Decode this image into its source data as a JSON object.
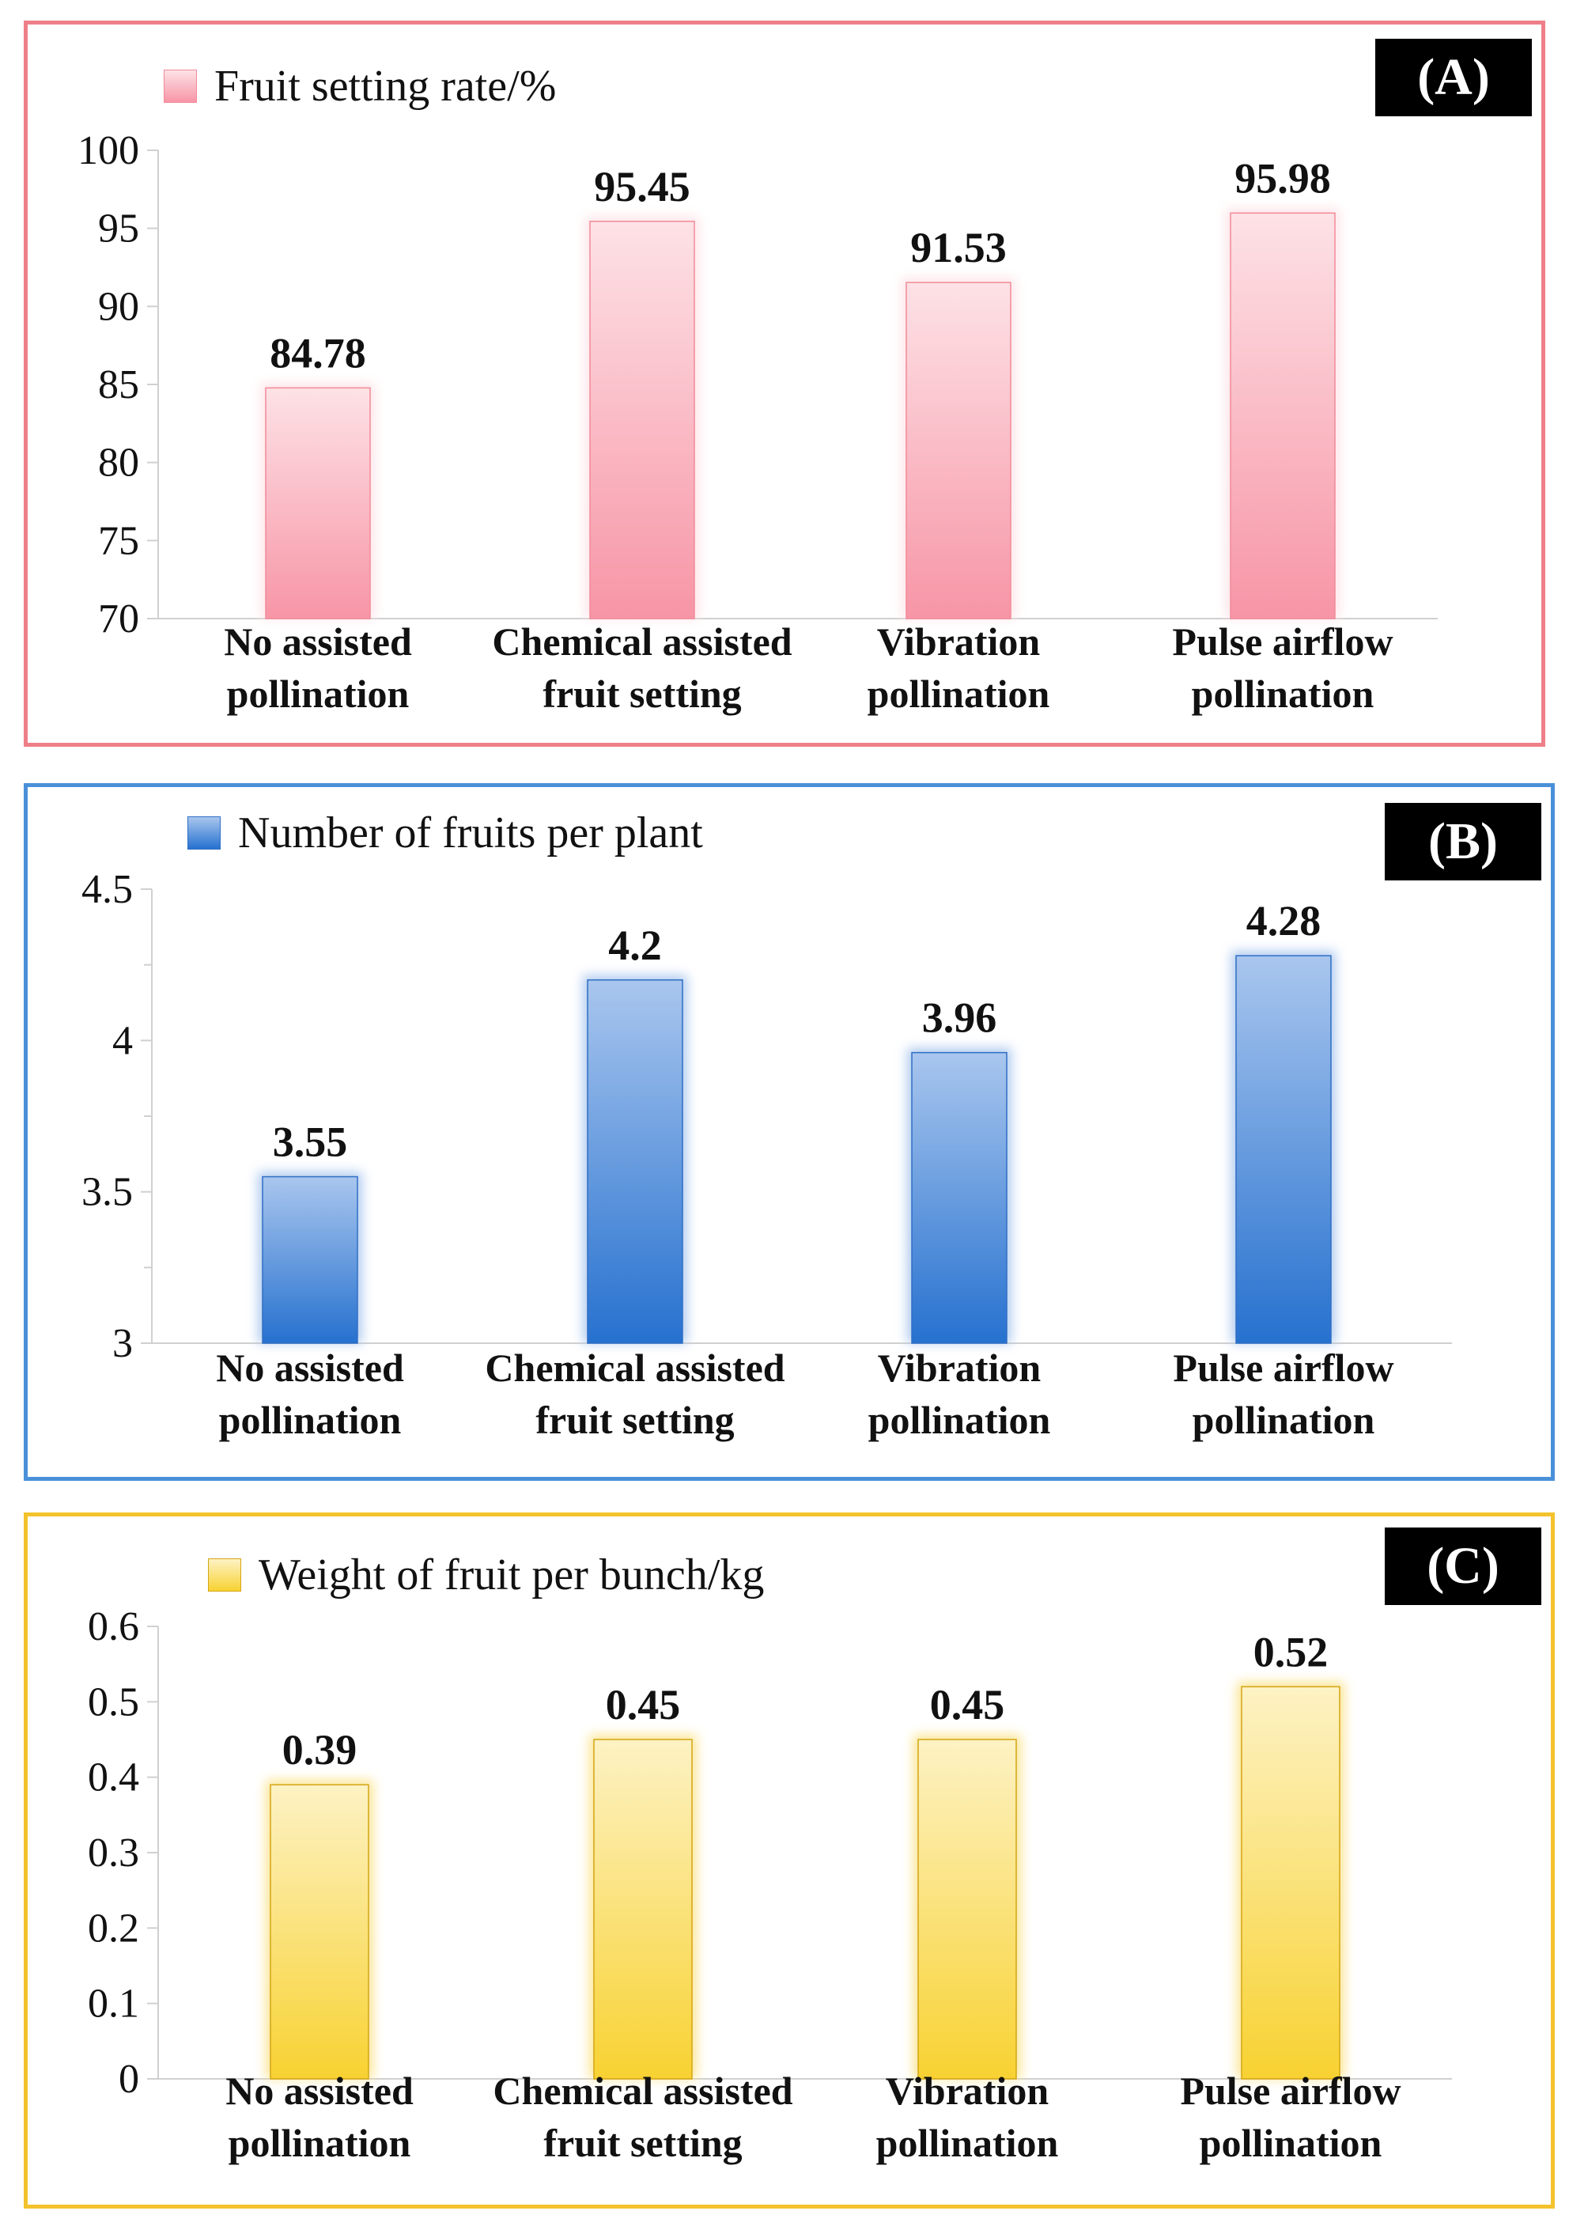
{
  "panels": {
    "a": {
      "tag": "(A)",
      "legend": "Fruit setting rate/%"
    },
    "b": {
      "tag": "(B)",
      "legend": "Number of fruits per plant"
    },
    "c": {
      "tag": "(C)",
      "legend": "Weight of fruit per bunch/kg"
    }
  },
  "colors": {
    "a_border": "#ee7f88",
    "a_bar_top": "#fde2e6",
    "a_bar_bottom": "#f795a6",
    "a_bar_edge": "#f28a98",
    "b_border": "#4a90d9",
    "b_bar_top": "#a9c6ee",
    "b_bar_bottom": "#2671cf",
    "b_bar_edge": "#2f6fc4",
    "c_border": "#f3c22c",
    "c_bar_top": "#fdf2c4",
    "c_bar_bottom": "#f8d232",
    "c_bar_edge": "#d4a514"
  },
  "chart_data": [
    {
      "type": "bar",
      "title": "(A)",
      "series": [
        {
          "name": "Fruit setting rate/%",
          "values": [
            84.78,
            95.45,
            91.53,
            95.98
          ]
        }
      ],
      "categories": [
        [
          "No assisted",
          "pollination"
        ],
        [
          "Chemical assisted",
          "fruit setting"
        ],
        [
          "Vibration",
          "pollination"
        ],
        [
          "Pulse airflow",
          "pollination"
        ]
      ],
      "value_labels": [
        "84.78",
        "95.45",
        "91.53",
        "95.98"
      ],
      "ylim": [
        70,
        100
      ],
      "yticks": [
        "70",
        "75",
        "80",
        "85",
        "90",
        "95",
        "100"
      ],
      "legend_position": "top-left",
      "grid": false,
      "xlabel": "",
      "ylabel": ""
    },
    {
      "type": "bar",
      "title": "(B)",
      "series": [
        {
          "name": "Number of fruits per plant",
          "values": [
            3.55,
            4.2,
            3.96,
            4.28
          ]
        }
      ],
      "categories": [
        [
          "No assisted",
          "pollination"
        ],
        [
          "Chemical assisted",
          "fruit setting"
        ],
        [
          "Vibration",
          "pollination"
        ],
        [
          "Pulse airflow",
          "pollination"
        ]
      ],
      "value_labels": [
        "3.55",
        "4.2",
        "3.96",
        "4.28"
      ],
      "ylim": [
        3,
        4.5
      ],
      "yticks": [
        "3",
        "3.5",
        "4",
        "4.5"
      ],
      "legend_position": "top-left",
      "grid": false,
      "xlabel": "",
      "ylabel": ""
    },
    {
      "type": "bar",
      "title": "(C)",
      "series": [
        {
          "name": "Weight of fruit per bunch/kg",
          "values": [
            0.39,
            0.45,
            0.45,
            0.52
          ]
        }
      ],
      "categories": [
        [
          "No assisted",
          "pollination"
        ],
        [
          "Chemical assisted",
          "fruit setting"
        ],
        [
          "Vibration",
          "pollination"
        ],
        [
          "Pulse airflow",
          "pollination"
        ]
      ],
      "value_labels": [
        "0.39",
        "0.45",
        "0.45",
        "0.52"
      ],
      "ylim": [
        0,
        0.6
      ],
      "yticks": [
        "0",
        "0.1",
        "0.2",
        "0.3",
        "0.4",
        "0.5",
        "0.6"
      ],
      "legend_position": "top-left",
      "grid": false,
      "xlabel": "",
      "ylabel": ""
    }
  ]
}
